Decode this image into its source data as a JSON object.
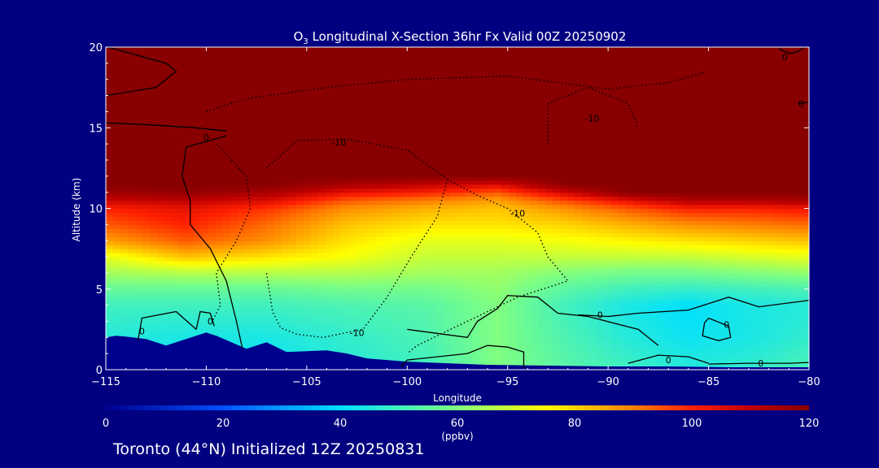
{
  "chart_data": {
    "type": "heatmap",
    "title_prefix": "O",
    "title_sub": "3",
    "title_rest": " Longitudinal X-Section 36hr  Fx Valid 00Z 20250902",
    "xlabel": "Longitude",
    "ylabel": "Altitude (km)",
    "xlim": [
      -115,
      -80
    ],
    "ylim": [
      0,
      20
    ],
    "x_ticks": [
      -115,
      -110,
      -105,
      -100,
      -95,
      -90,
      -85,
      -80
    ],
    "x_tick_labels": [
      "−115",
      "−110",
      "−105",
      "−100",
      "−95",
      "−90",
      "−85",
      "−80"
    ],
    "y_ticks": [
      0,
      5,
      10,
      15,
      20
    ],
    "y_tick_labels": [
      "0",
      "5",
      "10",
      "15",
      "20"
    ],
    "colorbar": {
      "min": 0,
      "max": 120,
      "units": "(ppbv)",
      "ticks": [
        0,
        20,
        40,
        60,
        80,
        100,
        120
      ],
      "tick_labels": [
        "0",
        "20",
        "40",
        "60",
        "80",
        "100",
        "120"
      ]
    },
    "colormap": [
      {
        "v": 0,
        "c": "#00008f"
      },
      {
        "v": 20,
        "c": "#0050ff"
      },
      {
        "v": 40,
        "c": "#00e0ff"
      },
      {
        "v": 60,
        "c": "#80ff80"
      },
      {
        "v": 75,
        "c": "#ffff00"
      },
      {
        "v": 90,
        "c": "#ff8000"
      },
      {
        "v": 100,
        "c": "#ff2000"
      },
      {
        "v": 110,
        "c": "#c00000"
      },
      {
        "v": 120,
        "c": "#880000"
      }
    ],
    "profile_altitudes_km": [
      0,
      2,
      4,
      5,
      6,
      7,
      8,
      9,
      10,
      10.5,
      11,
      11.5,
      12,
      20
    ],
    "profiles": [
      {
        "lon": -115,
        "o3": [
          44,
          46,
          50,
          56,
          64,
          72,
          86,
          94,
          100,
          108,
          116,
          120,
          120,
          120
        ]
      },
      {
        "lon": -111,
        "o3": [
          42,
          44,
          50,
          56,
          66,
          82,
          94,
          100,
          104,
          110,
          118,
          120,
          120,
          120
        ]
      },
      {
        "lon": -107,
        "o3": [
          42,
          44,
          50,
          56,
          66,
          78,
          88,
          92,
          98,
          106,
          114,
          120,
          120,
          120
        ]
      },
      {
        "lon": -103,
        "o3": [
          46,
          48,
          52,
          58,
          66,
          74,
          78,
          82,
          88,
          94,
          104,
          114,
          120,
          120
        ]
      },
      {
        "lon": -99,
        "o3": [
          50,
          52,
          54,
          58,
          64,
          68,
          72,
          78,
          84,
          90,
          100,
          110,
          120,
          120
        ]
      },
      {
        "lon": -95.5,
        "o3": [
          60,
          60,
          60,
          62,
          64,
          68,
          72,
          78,
          82,
          86,
          94,
          106,
          120,
          120
        ]
      },
      {
        "lon": -92,
        "o3": [
          54,
          52,
          50,
          54,
          60,
          68,
          74,
          80,
          88,
          96,
          108,
          120,
          120,
          120
        ]
      },
      {
        "lon": -89,
        "o3": [
          50,
          46,
          44,
          50,
          58,
          68,
          76,
          84,
          94,
          104,
          120,
          120,
          120,
          120
        ]
      },
      {
        "lon": -86,
        "o3": [
          46,
          42,
          40,
          48,
          58,
          68,
          78,
          88,
          100,
          112,
          120,
          120,
          120,
          120
        ]
      },
      {
        "lon": -83,
        "o3": [
          48,
          44,
          44,
          50,
          60,
          70,
          80,
          90,
          100,
          112,
          120,
          120,
          120,
          120
        ]
      },
      {
        "lon": -80,
        "o3": [
          52,
          48,
          46,
          52,
          62,
          72,
          82,
          92,
          102,
          114,
          120,
          120,
          120,
          120
        ]
      }
    ],
    "terrain_km": [
      [
        -115,
        2.0
      ],
      [
        -114.5,
        2.1
      ],
      [
        -114,
        2.05
      ],
      [
        -113,
        1.9
      ],
      [
        -112,
        1.5
      ],
      [
        -111,
        1.9
      ],
      [
        -110,
        2.3
      ],
      [
        -109.5,
        2.1
      ],
      [
        -108,
        1.3
      ],
      [
        -107,
        1.7
      ],
      [
        -106,
        1.1
      ],
      [
        -104,
        1.2
      ],
      [
        -103,
        1.0
      ],
      [
        -102,
        0.7
      ],
      [
        -101,
        0.6
      ],
      [
        -100,
        0.5
      ],
      [
        -98,
        0.4
      ],
      [
        -96,
        0.3
      ],
      [
        -93,
        0.25
      ],
      [
        -90,
        0.2
      ],
      [
        -87,
        0.2
      ],
      [
        -84,
        0.15
      ],
      [
        -81,
        0.15
      ],
      [
        -80,
        0.15
      ]
    ],
    "contours": [
      {
        "level": 0,
        "style": "solid",
        "points": [
          [
            -114.9,
            20
          ],
          [
            -112,
            19
          ],
          [
            -111.5,
            18.5
          ],
          [
            -112.5,
            17.5
          ],
          [
            -115,
            17
          ]
        ]
      },
      {
        "level": 0,
        "style": "solid",
        "points": [
          [
            -115,
            15.3
          ],
          [
            -113,
            15.2
          ],
          [
            -110.5,
            15.0
          ],
          [
            -109,
            14.8
          ]
        ]
      },
      {
        "level": 0,
        "style": "solid",
        "points": [
          [
            -109,
            14.5
          ],
          [
            -111,
            13.8
          ],
          [
            -111.2,
            12
          ],
          [
            -110.8,
            10.5
          ],
          [
            -110.8,
            9
          ],
          [
            -109.8,
            7.5
          ],
          [
            -109,
            5.5
          ],
          [
            -108.5,
            3
          ],
          [
            -108.2,
            1.3
          ]
        ]
      },
      {
        "level": 0,
        "style": "solid",
        "points": [
          [
            -113.4,
            1.8
          ],
          [
            -113.2,
            3.2
          ],
          [
            -111.5,
            3.6
          ],
          [
            -110.5,
            2.5
          ]
        ]
      },
      {
        "level": 0,
        "style": "solid",
        "points": [
          [
            -110.5,
            2.5
          ],
          [
            -110.3,
            3.6
          ],
          [
            -109.8,
            3.5
          ],
          [
            -109.6,
            2.7
          ]
        ]
      },
      {
        "level": -10,
        "style": "dotted",
        "points": [
          [
            -110,
            16
          ],
          [
            -108,
            16.8
          ],
          [
            -104,
            17.5
          ],
          [
            -100,
            18
          ],
          [
            -95,
            18.2
          ],
          [
            -90,
            17.4
          ],
          [
            -87,
            17.8
          ],
          [
            -85,
            18.5
          ]
        ]
      },
      {
        "level": -10,
        "style": "dotted",
        "points": [
          [
            -109.5,
            14
          ],
          [
            -108,
            12
          ],
          [
            -107.8,
            10
          ],
          [
            -108.5,
            8
          ],
          [
            -109.5,
            6
          ],
          [
            -109.3,
            4
          ],
          [
            -109.7,
            3.0
          ]
        ]
      },
      {
        "level": -10,
        "style": "dotted",
        "points": [
          [
            -107,
            12.5
          ],
          [
            -105.5,
            14.2
          ],
          [
            -103,
            14.3
          ],
          [
            -100,
            13.6
          ],
          [
            -98,
            11.8
          ],
          [
            -98.5,
            9.5
          ],
          [
            -99.8,
            7
          ],
          [
            -101,
            4.5
          ],
          [
            -102.2,
            2.5
          ],
          [
            -104.2,
            2.0
          ],
          [
            -105.5,
            2.2
          ],
          [
            -106.3,
            2.6
          ],
          [
            -106.7,
            3.6
          ],
          [
            -107,
            6
          ]
        ]
      },
      {
        "level": -10,
        "style": "dotted",
        "points": [
          [
            -98,
            11.8
          ],
          [
            -96.5,
            10.8
          ],
          [
            -95,
            10
          ],
          [
            -93.5,
            8.5
          ],
          [
            -93,
            7
          ],
          [
            -92,
            5.5
          ],
          [
            -94.5,
            4.5
          ],
          [
            -97,
            3
          ],
          [
            -99.5,
            1.5
          ],
          [
            -100,
            1
          ]
        ]
      },
      {
        "level": -10,
        "style": "dotted",
        "points": [
          [
            -93,
            14
          ],
          [
            -93,
            16.5
          ],
          [
            -91,
            17.5
          ],
          [
            -89,
            16.5
          ],
          [
            -88.5,
            15
          ]
        ]
      },
      {
        "level": 0,
        "style": "solid",
        "points": [
          [
            -100.3,
            0.2
          ],
          [
            -100,
            0.6
          ],
          [
            -98.5,
            0.8
          ],
          [
            -97,
            1.0
          ],
          [
            -96,
            1.5
          ],
          [
            -95,
            1.4
          ],
          [
            -94.2,
            1.1
          ],
          [
            -94.2,
            0.1
          ]
        ]
      },
      {
        "level": 0,
        "style": "solid",
        "points": [
          [
            -100,
            2.5
          ],
          [
            -97,
            2.0
          ],
          [
            -96.5,
            3
          ],
          [
            -95.5,
            3.8
          ],
          [
            -95,
            4.6
          ],
          [
            -93.5,
            4.5
          ],
          [
            -92.5,
            3.5
          ],
          [
            -91,
            3.3
          ],
          [
            -88.5,
            2.5
          ],
          [
            -87.5,
            1.5
          ]
        ]
      },
      {
        "level": 0,
        "style": "solid",
        "points": [
          [
            -91.5,
            3.4
          ],
          [
            -90,
            3.3
          ],
          [
            -88.5,
            3.5
          ],
          [
            -86,
            3.7
          ],
          [
            -84,
            4.5
          ],
          [
            -82.5,
            3.9
          ],
          [
            -80,
            4.3
          ]
        ]
      },
      {
        "level": 0,
        "style": "solid",
        "points": [
          [
            -85,
            3.2
          ],
          [
            -84,
            2.7
          ],
          [
            -83.9,
            2.0
          ],
          [
            -84.5,
            1.8
          ],
          [
            -85.3,
            2.1
          ],
          [
            -85.2,
            2.9
          ],
          [
            -85,
            3.2
          ]
        ]
      },
      {
        "level": 0,
        "style": "solid",
        "points": [
          [
            -89,
            0.4
          ],
          [
            -87.5,
            0.9
          ],
          [
            -86,
            0.8
          ],
          [
            -85,
            0.4
          ]
        ]
      },
      {
        "level": 0,
        "style": "solid",
        "points": [
          [
            -85,
            0.35
          ],
          [
            -83,
            0.4
          ],
          [
            -81,
            0.4
          ],
          [
            -80,
            0.45
          ]
        ]
      },
      {
        "level": 0,
        "style": "solid",
        "points": [
          [
            -81.5,
            19.9
          ],
          [
            -81.0,
            19.6
          ],
          [
            -80.6,
            19.7
          ],
          [
            -80.2,
            20
          ]
        ]
      },
      {
        "level": 0,
        "style": "solid",
        "points": [
          [
            -80.5,
            16.5
          ],
          [
            -80.0,
            16.6
          ]
        ]
      }
    ],
    "contour_labels": [
      {
        "text": "0",
        "lon": -110,
        "alt": 14.4
      },
      {
        "text": "-10",
        "lon": -103.4,
        "alt": 14.1
      },
      {
        "text": "-10",
        "lon": -90.8,
        "alt": 15.6
      },
      {
        "text": "-10",
        "lon": -94.5,
        "alt": 9.7
      },
      {
        "text": "-10",
        "lon": -102.5,
        "alt": 2.3
      },
      {
        "text": "0",
        "lon": -109.8,
        "alt": 3.0
      },
      {
        "text": "0",
        "lon": -113.2,
        "alt": 2.4
      },
      {
        "text": "0",
        "lon": -90.4,
        "alt": 3.4
      },
      {
        "text": "0",
        "lon": -84.1,
        "alt": 2.8
      },
      {
        "text": "0",
        "lon": -87,
        "alt": 0.6
      },
      {
        "text": "0",
        "lon": -82.4,
        "alt": 0.4
      },
      {
        "text": "0",
        "lon": -81.2,
        "alt": 19.4
      },
      {
        "text": "0",
        "lon": -80.4,
        "alt": 16.5
      }
    ]
  },
  "footer_text": "Toronto (44°N) Initialized 12Z 20250831"
}
